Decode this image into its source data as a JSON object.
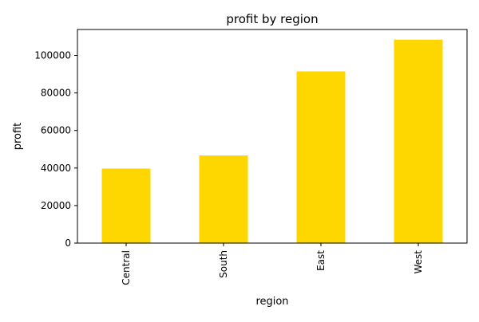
{
  "chart_data": {
    "type": "bar",
    "title": "profit by region",
    "xlabel": "region",
    "ylabel": "profit",
    "categories": [
      "Central",
      "South",
      "East",
      "West"
    ],
    "values": [
      39700,
      46700,
      91500,
      108400
    ],
    "ylim": [
      0,
      113800
    ],
    "yticks": [
      0,
      20000,
      40000,
      60000,
      80000,
      100000
    ],
    "grid": false,
    "legend": "none",
    "bar_color": "#FFD700"
  }
}
